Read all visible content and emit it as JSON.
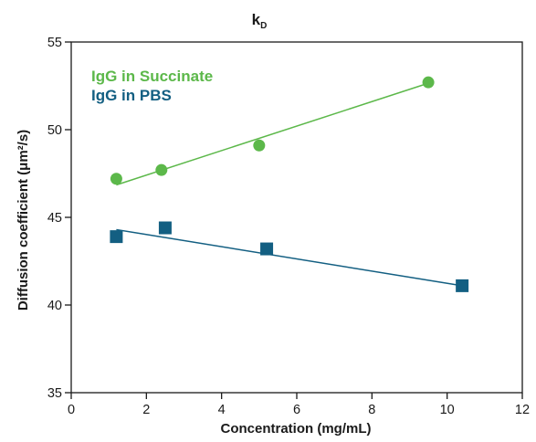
{
  "chart_data": {
    "type": "scatter",
    "title": "k",
    "title_subscript": "D",
    "xlabel": "Concentration (mg/mL)",
    "ylabel": "Diffusion coefficient (μm²/s)",
    "xlim": [
      0,
      12
    ],
    "ylim": [
      35,
      55
    ],
    "xticks": [
      0,
      2,
      4,
      6,
      8,
      10,
      12
    ],
    "yticks": [
      35,
      40,
      45,
      50,
      55
    ],
    "grid": false,
    "legend": "top-left",
    "series": [
      {
        "name": "IgG in Succinate",
        "marker": "circle",
        "color": "#5cb84a",
        "x": [
          1.2,
          2.4,
          5.0,
          9.5
        ],
        "y": [
          47.2,
          47.7,
          49.1,
          52.7
        ],
        "fit": {
          "x": [
            1.2,
            9.5
          ],
          "y": [
            46.85,
            52.65
          ]
        }
      },
      {
        "name": "IgG in PBS",
        "marker": "square",
        "color": "#135f82",
        "x": [
          1.2,
          2.5,
          5.2,
          10.4
        ],
        "y": [
          43.9,
          44.4,
          43.2,
          41.1
        ],
        "fit": {
          "x": [
            1.2,
            10.4
          ],
          "y": [
            44.3,
            41.1
          ]
        }
      }
    ]
  }
}
